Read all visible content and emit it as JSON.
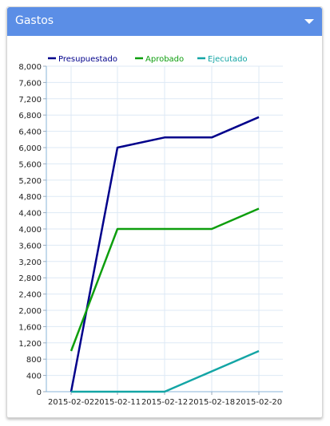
{
  "panel": {
    "title": "Gastos",
    "header_color": "#5b8ee6"
  },
  "icons": {
    "toggle": "caret-down-icon"
  },
  "chart_data": {
    "type": "line",
    "x": [
      "2015-02-02",
      "2015-02-11",
      "2015-02-12",
      "2015-02-18",
      "2015-02-20"
    ],
    "xticks": [
      "2015-02-02",
      "2015-02-11",
      "2015-02-12",
      "2015-02-18",
      "2015-02-20"
    ],
    "ylim": [
      0,
      8000
    ],
    "yticks": [
      "0",
      "400",
      "800",
      "1,200",
      "1,600",
      "2,000",
      "2,400",
      "2,800",
      "3,200",
      "3,600",
      "4,000",
      "4,400",
      "4,800",
      "5,200",
      "5,600",
      "6,000",
      "6,400",
      "6,800",
      "7,200",
      "7,600",
      "8,000"
    ],
    "grid": true,
    "legend_position": "top",
    "series": [
      {
        "name": "Presupuestado",
        "color": "#00008b",
        "values": [
          0,
          6000,
          6250,
          6250,
          6750
        ]
      },
      {
        "name": "Aprobado",
        "color": "#0d9e0d",
        "values": [
          1000,
          4000,
          4000,
          4000,
          4500
        ]
      },
      {
        "name": "Ejecutado",
        "color": "#13a5a5",
        "values": [
          0,
          0,
          0,
          500,
          1000
        ]
      }
    ]
  }
}
